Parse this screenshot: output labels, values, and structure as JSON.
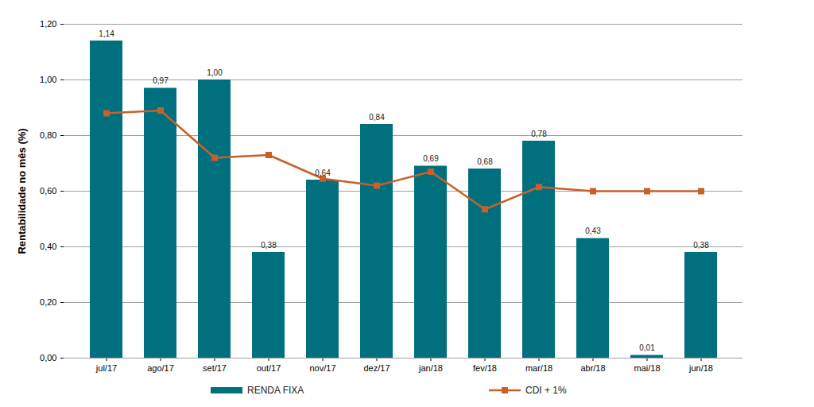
{
  "chart_data": {
    "type": "bar",
    "y_label": "Rentabilidade no mês (%)",
    "categories": [
      "jul/17",
      "ago/17",
      "set/17",
      "out/17",
      "nov/17",
      "dez/17",
      "jan/18",
      "fev/18",
      "mar/18",
      "abr/18",
      "mai/18",
      "jun/18"
    ],
    "series": [
      {
        "name": "RENDA FIXA",
        "type": "bar",
        "color": "#00707f",
        "data_labels": true,
        "values": [
          1.14,
          0.97,
          1.0,
          0.38,
          0.64,
          0.84,
          0.69,
          0.68,
          0.78,
          0.43,
          0.01,
          0.38
        ],
        "value_labels": [
          "1,14",
          "0,97",
          "1,00",
          "0,38",
          "0,64",
          "0,84",
          "0,69",
          "0,68",
          "0,78",
          "0,43",
          "0,01",
          "0,38"
        ]
      },
      {
        "name": "CDI + 1%",
        "type": "line",
        "color": "#c8602a",
        "marker": "square",
        "values": [
          0.88,
          0.89,
          0.72,
          0.73,
          0.645,
          0.62,
          0.67,
          0.535,
          0.615,
          0.6,
          0.6,
          0.6
        ]
      }
    ],
    "ylim": [
      0,
      1.2
    ],
    "yticks": [
      {
        "value": 0,
        "label": "0,00"
      },
      {
        "value": 0.2,
        "label": "0,20"
      },
      {
        "value": 0.4,
        "label": "0,40"
      },
      {
        "value": 0.6,
        "label": "0,60"
      },
      {
        "value": 0.8,
        "label": "0,80"
      },
      {
        "value": 1.0,
        "label": "1,00"
      },
      {
        "value": 1.2,
        "label": "1,20"
      }
    ],
    "grid": true,
    "legend": "bottom"
  }
}
